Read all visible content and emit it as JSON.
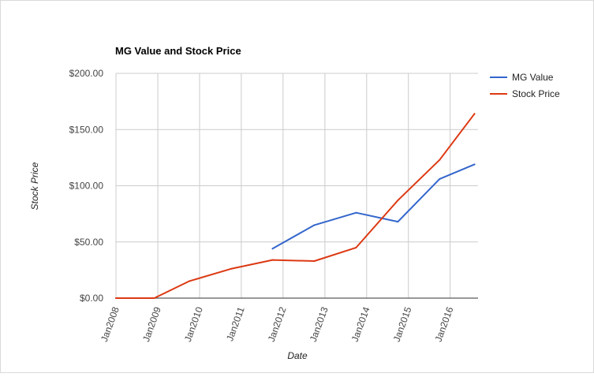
{
  "chart_data": {
    "type": "line",
    "title": "MG Value and Stock Price",
    "xlabel": "Date",
    "ylabel": "Stock Price",
    "x_ticks": [
      "Jan2008",
      "Jan2009",
      "Jan2010",
      "Jan2011",
      "Jan2012",
      "Jan2013",
      "Jan2014",
      "Jan2015",
      "Jan2016"
    ],
    "y_ticks": [
      "$0.00",
      "$50.00",
      "$100.00",
      "$150.00",
      "$200.00"
    ],
    "xlim": [
      "2008-01-01",
      "2016-09-01"
    ],
    "ylim": [
      0,
      200
    ],
    "grid": true,
    "legend_position": "right",
    "series": [
      {
        "name": "MG Value",
        "color": "#3366cc",
        "points": [
          {
            "x": "2011-10-01",
            "y": 44
          },
          {
            "x": "2012-10-01",
            "y": 65
          },
          {
            "x": "2013-10-01",
            "y": 76
          },
          {
            "x": "2014-10-01",
            "y": 68
          },
          {
            "x": "2015-10-01",
            "y": 106
          },
          {
            "x": "2016-08-01",
            "y": 119
          }
        ]
      },
      {
        "name": "Stock Price",
        "color": "#dc3912",
        "points": [
          {
            "x": "2008-01-01",
            "y": 0
          },
          {
            "x": "2008-12-01",
            "y": 0
          },
          {
            "x": "2009-10-01",
            "y": 15
          },
          {
            "x": "2010-10-01",
            "y": 26
          },
          {
            "x": "2011-10-01",
            "y": 34
          },
          {
            "x": "2012-10-01",
            "y": 33
          },
          {
            "x": "2013-10-01",
            "y": 45
          },
          {
            "x": "2014-10-01",
            "y": 87
          },
          {
            "x": "2015-10-01",
            "y": 123
          },
          {
            "x": "2016-08-01",
            "y": 164
          }
        ]
      }
    ]
  }
}
